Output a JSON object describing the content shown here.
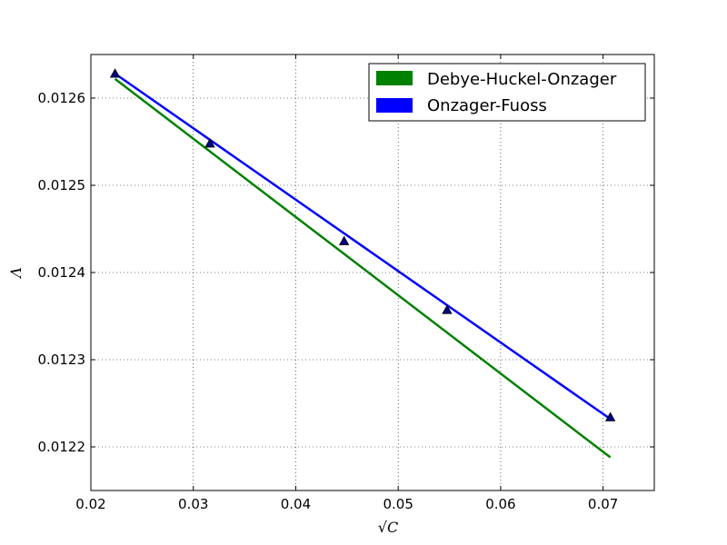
{
  "chart_data": {
    "type": "line",
    "title": "",
    "xlabel": "√C",
    "ylabel": "Λ",
    "xlim": [
      0.02,
      0.075
    ],
    "ylim": [
      0.01215,
      0.01265
    ],
    "x_ticks": [
      0.02,
      0.03,
      0.04,
      0.05,
      0.06,
      0.07
    ],
    "x_tick_labels": [
      "0.02",
      "0.03",
      "0.04",
      "0.05",
      "0.06",
      "0.07"
    ],
    "y_ticks": [
      0.0122,
      0.0123,
      0.0124,
      0.0125,
      0.0126
    ],
    "y_tick_labels": [
      "0.0122",
      "0.0123",
      "0.0124",
      "0.0125",
      "0.0126"
    ],
    "grid": true,
    "legend_position": "top-right",
    "series": [
      {
        "name": "Debye-Huckel-Onzager",
        "color": "#008000",
        "x": [
          0.02236,
          0.07071
        ],
        "y": [
          0.012622,
          0.012188
        ]
      },
      {
        "name": "Onzager-Fuoss",
        "color": "#0000ff",
        "x": [
          0.02236,
          0.07071
        ],
        "y": [
          0.012628,
          0.012232
        ]
      }
    ],
    "markers": {
      "shape": "triangle",
      "color": "#000080",
      "x": [
        0.02236,
        0.03162,
        0.04472,
        0.05477,
        0.07071
      ],
      "y": [
        0.012628,
        0.012548,
        0.012436,
        0.012357,
        0.012234
      ]
    }
  }
}
